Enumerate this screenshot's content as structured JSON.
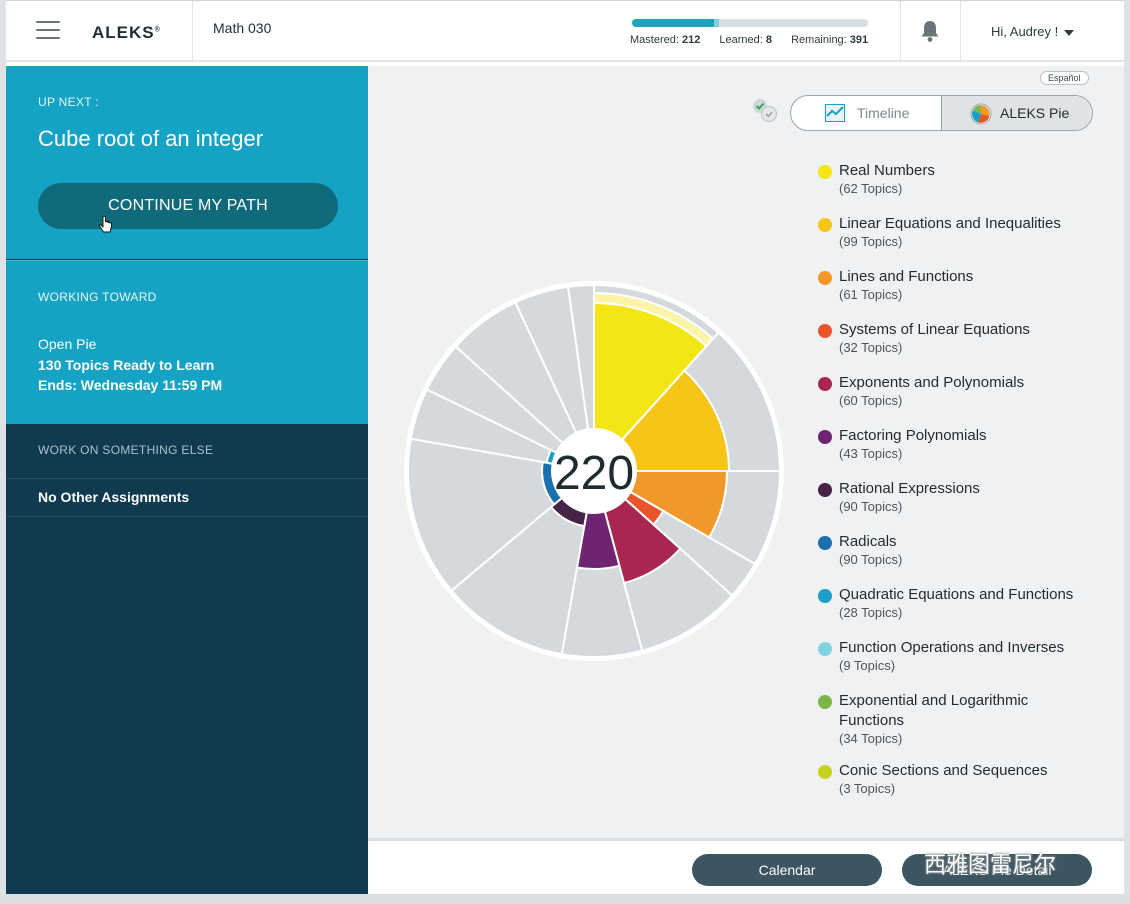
{
  "header": {
    "logo": "ALEKS",
    "logo_mark": "®",
    "course": "Math 030",
    "progress": {
      "mastered_label": "Mastered:",
      "mastered": "212",
      "learned_label": "Learned:",
      "learned": "8",
      "remaining_label": "Remaining:",
      "remaining": "391",
      "mastered_fraction": 0.347,
      "learned_fraction": 0.013
    },
    "user_greeting": "Hi, Audrey !"
  },
  "left": {
    "up_next_label": "UP NEXT :",
    "up_next_topic": "Cube root of an integer",
    "continue_label": "CONTINUE MY PATH",
    "working_toward_label": "WORKING TOWARD",
    "working_line1": "Open Pie",
    "working_line2": "130 Topics Ready to Learn",
    "working_line3": "Ends: Wednesday 11:59 PM",
    "work_else_label": "WORK ON SOMETHING ELSE",
    "no_assignments": "No Other Assignments"
  },
  "main": {
    "language_link": "Español",
    "tabs": [
      {
        "label": "Timeline",
        "icon": "timeline-icon",
        "active": false
      },
      {
        "label": "ALEKS Pie",
        "icon": "pie-chart-icon",
        "active": true
      }
    ],
    "pie_center": "220",
    "legend": [
      {
        "name": "Real Numbers",
        "count": "(62 Topics)",
        "color": "#f3e614"
      },
      {
        "name": "Linear Equations and Inequalities",
        "count": "(99 Topics)",
        "color": "#f6c518"
      },
      {
        "name": "Lines and Functions",
        "count": "(61 Topics)",
        "color": "#f2982b"
      },
      {
        "name": "Systems of Linear Equations",
        "count": "(32 Topics)",
        "color": "#e9552b"
      },
      {
        "name": "Exponents and Polynomials",
        "count": "(60 Topics)",
        "color": "#a8264f"
      },
      {
        "name": "Factoring Polynomials",
        "count": "(43 Topics)",
        "color": "#6e2470"
      },
      {
        "name": "Rational Expressions",
        "count": "(90 Topics)",
        "color": "#452446"
      },
      {
        "name": "Radicals",
        "count": "(90 Topics)",
        "color": "#1a6fad"
      },
      {
        "name": "Quadratic Equations and Functions",
        "count": "(28 Topics)",
        "color": "#1aa0c8"
      },
      {
        "name": "Function Operations and Inverses",
        "count": "(9 Topics)",
        "color": "#7fd4e2"
      },
      {
        "name": "Exponential and Logarithmic",
        "name2": "Functions",
        "count": "(34 Topics)",
        "color": "#7ab648"
      },
      {
        "name": "Conic Sections and Sequences",
        "count": "(3 Topics)",
        "color": "#c5d31e"
      }
    ]
  },
  "footer": {
    "calendar_label": "Calendar",
    "detail_label": "ALEKS Pie Detail",
    "watermark": "西雅图雷尼尔"
  },
  "colors": {
    "accent": "#14a3c4",
    "sidebar_dark": "#0f3a4f",
    "button_dark": "#3c5560",
    "pie_empty": "#d5d9dd"
  }
}
